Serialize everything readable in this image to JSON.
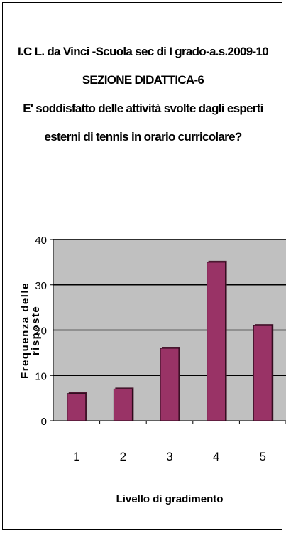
{
  "titles": [
    "I.C L. da Vinci -Scuola sec di I grado-a.s.2009-10",
    "SEZIONE DIDATTICA-6",
    "E' soddisfatto delle attività svolte dagli esperti",
    "esterni di tennis  in orario curricolare?"
  ],
  "chart_data": {
    "type": "bar",
    "categories": [
      "1",
      "2",
      "3",
      "4",
      "5"
    ],
    "values": [
      6,
      7,
      16,
      35,
      21
    ],
    "ylim": [
      0,
      40
    ],
    "yticks": [
      0,
      10,
      20,
      30,
      40
    ],
    "ylabel": "Frequenza delle risposte",
    "ylabel_lines": [
      "Frequenza delle",
      "risposte"
    ],
    "xlabel": "Livello di gradimento",
    "grid": true,
    "legend": "none",
    "colors": {
      "bar": "#993366",
      "plot_background": "#c0c0c0",
      "gridline": "#000000"
    }
  }
}
